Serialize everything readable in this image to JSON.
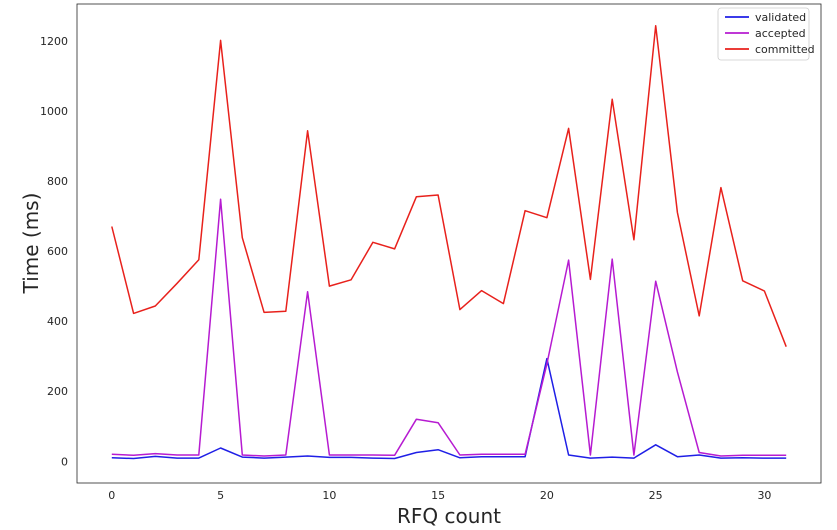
{
  "chart_data": {
    "type": "line",
    "xlabel": "RFQ count",
    "ylabel": "Time (ms)",
    "xlim": [
      -1.6,
      32.6
    ],
    "ylim": [
      -62,
      1305
    ],
    "x_ticks": [
      0,
      5,
      10,
      15,
      20,
      25,
      30
    ],
    "y_ticks": [
      0,
      200,
      400,
      600,
      800,
      1000,
      1200
    ],
    "grid": false,
    "legend_position": "top-right",
    "x": [
      0,
      1,
      2,
      3,
      4,
      5,
      6,
      7,
      8,
      9,
      10,
      11,
      12,
      13,
      14,
      15,
      16,
      17,
      18,
      19,
      20,
      21,
      22,
      23,
      24,
      25,
      26,
      27,
      28,
      29,
      30,
      31
    ],
    "series": [
      {
        "name": "validated",
        "color": "#1f1fe6",
        "values": [
          10,
          8,
          14,
          9,
          9,
          38,
          12,
          9,
          12,
          15,
          11,
          11,
          9,
          8,
          25,
          33,
          10,
          13,
          13,
          13,
          293,
          18,
          9,
          12,
          9,
          47,
          13,
          18,
          9,
          10,
          9,
          9
        ]
      },
      {
        "name": "accepted",
        "color": "#b61bd1",
        "values": [
          20,
          17,
          22,
          18,
          18,
          748,
          18,
          15,
          18,
          484,
          18,
          18,
          18,
          17,
          120,
          110,
          18,
          20,
          20,
          20,
          278,
          574,
          18,
          577,
          18,
          514,
          255,
          25,
          15,
          17,
          17,
          17
        ]
      },
      {
        "name": "committed",
        "color": "#e8211c",
        "values": [
          670,
          422,
          443,
          508,
          575,
          1201,
          638,
          425,
          428,
          943,
          500,
          518,
          625,
          606,
          755,
          760,
          433,
          487,
          450,
          715,
          695,
          950,
          519,
          1033,
          632,
          1243,
          710,
          415,
          781,
          515,
          486,
          327
        ]
      }
    ]
  }
}
